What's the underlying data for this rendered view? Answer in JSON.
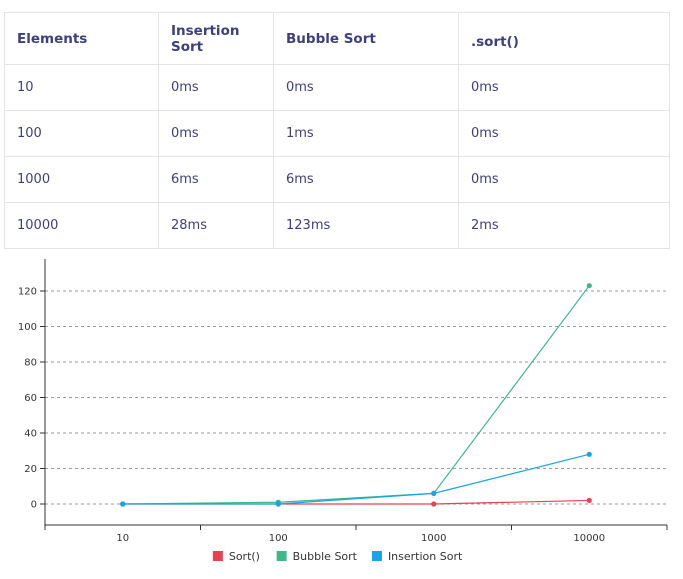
{
  "table": {
    "headers": [
      "Elements",
      "Insertion Sort",
      "Bubble Sort",
      ".sort()"
    ],
    "rows": [
      [
        "10",
        "0ms",
        "0ms",
        "0ms"
      ],
      [
        "100",
        "0ms",
        "1ms",
        "0ms"
      ],
      [
        "1000",
        "6ms",
        "6ms",
        "0ms"
      ],
      [
        "10000",
        "28ms",
        "123ms",
        "2ms"
      ]
    ]
  },
  "chart_data": {
    "type": "line",
    "title": "",
    "xlabel": "",
    "ylabel": "",
    "categories": [
      "10",
      "100",
      "1000",
      "10000"
    ],
    "ylim": [
      0,
      130
    ],
    "yticks": [
      0,
      20,
      40,
      60,
      80,
      100,
      120
    ],
    "grid": "horizontal-dashed",
    "legend_position": "bottom",
    "series": [
      {
        "name": "Sort()",
        "values": [
          0,
          0,
          0,
          2
        ],
        "color": "#e8414f"
      },
      {
        "name": "Bubble Sort",
        "values": [
          0,
          1,
          6,
          123
        ],
        "color": "#3db888"
      },
      {
        "name": "Insertion Sort",
        "values": [
          0,
          0,
          6,
          28
        ],
        "color": "#1aa3e8"
      }
    ]
  }
}
